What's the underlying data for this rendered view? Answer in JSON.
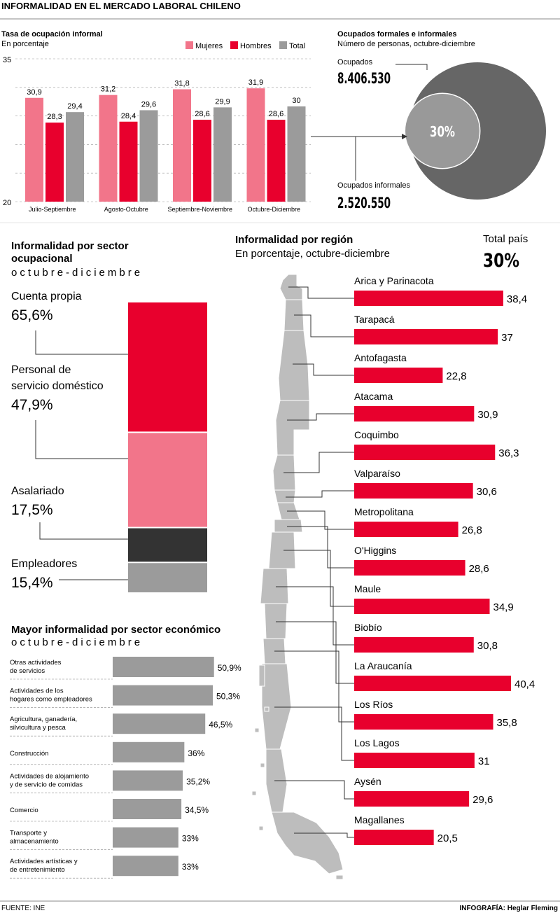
{
  "header": {
    "title": "INFORMALIDAD EN EL MERCADO LABORAL CHILENO"
  },
  "footer": {
    "source": "FUENTE: INE",
    "credit": "INFOGRAFÍA: Heglar Fleming"
  },
  "colors": {
    "mujeres": "#f2758a",
    "hombres": "#e8002d",
    "total": "#9b9b9b",
    "dark": "#333333",
    "region_bar": "#e8002d",
    "map": "#bdbdbd"
  },
  "chart_data": [
    {
      "type": "bar",
      "title": "Tasa de ocupación informal",
      "subtitle": "En porcentaje",
      "categories": [
        "Julio-Septiembre",
        "Agosto-Octubre",
        "Septiembre-Noviembre",
        "Octubre-Diciembre"
      ],
      "series": [
        {
          "name": "Mujeres",
          "values": [
            30.9,
            31.2,
            31.8,
            31.9
          ],
          "labels": [
            "30,9",
            "31,2",
            "31,8",
            "31,9"
          ]
        },
        {
          "name": "Hombres",
          "values": [
            28.3,
            28.4,
            28.6,
            28.6
          ],
          "labels": [
            "28,3",
            "28,4",
            "28,6",
            "28,6"
          ]
        },
        {
          "name": "Total",
          "values": [
            29.4,
            29.6,
            29.9,
            30
          ],
          "labels": [
            "29,4",
            "29,6",
            "29,9",
            "30"
          ]
        }
      ],
      "ylim": [
        20,
        35
      ],
      "yticks": [
        "35",
        "20"
      ],
      "legend": "top-right"
    },
    {
      "type": "pie",
      "title": "Ocupados formales e informales",
      "subtitle": "Número de personas, octubre-diciembre",
      "total_label": "Ocupados",
      "total_value": "8.406.530",
      "informal_label": "Ocupados informales",
      "informal_value": "2.520.550",
      "inner_label": "30%",
      "inner_share": 0.3
    },
    {
      "type": "bar",
      "orientation": "stacked-vertical",
      "title": "Informalidad por sector ocupacional",
      "subtitle": "octubre-diciembre",
      "categories": [
        "Cuenta propia",
        "Personal de servicio doméstico",
        "Asalariado",
        "Empleadores"
      ],
      "values": [
        65.6,
        47.9,
        17.5,
        15.4
      ],
      "labels": [
        "65,6%",
        "47,9%",
        "17,5%",
        "15,4%"
      ]
    },
    {
      "type": "bar",
      "orientation": "horizontal",
      "title": "Mayor informalidad por sector económico",
      "subtitle": "octubre-diciembre",
      "categories": [
        "Otras actividades de servicios",
        "Actividades de los hogares como empleadores",
        "Agricultura, ganadería, silvicultura y pesca",
        "Construcción",
        "Actividades de alojamiento y de servicio de comidas",
        "Comercio",
        "Transporte y almacenamiento",
        "Actividades artísticas y de entretenimiento"
      ],
      "category_lines": [
        [
          "Otras actividades",
          "de servicios"
        ],
        [
          "Actividades de los",
          "hogares como empleadores"
        ],
        [
          "Agricultura, ganadería,",
          "silvicultura y pesca"
        ],
        [
          "Construcción"
        ],
        [
          "Actividades de alojamiento",
          "y de servicio de comidas"
        ],
        [
          "Comercio"
        ],
        [
          "Transporte y",
          "almacenamiento"
        ],
        [
          "Actividades artísticas y",
          "de entretenimiento"
        ]
      ],
      "values": [
        50.9,
        50.3,
        46.5,
        36,
        35.2,
        34.5,
        33,
        33
      ],
      "labels": [
        "50,9%",
        "50,3%",
        "46,5%",
        "36%",
        "35,2%",
        "34,5%",
        "33%",
        "33%"
      ]
    },
    {
      "type": "bar",
      "orientation": "horizontal",
      "title": "Informalidad por región",
      "subtitle": "En porcentaje, octubre-diciembre",
      "total_label": "Total país",
      "total_value": "30%",
      "categories": [
        "Arica y Parinacota",
        "Tarapacá",
        "Antofagasta",
        "Atacama",
        "Coquimbo",
        "Valparaíso",
        "Metropolitana",
        "O'Higgins",
        "Maule",
        "Biobío",
        "La Araucanía",
        "Los Ríos",
        "Los Lagos",
        "Aysén",
        "Magallanes"
      ],
      "values": [
        38.4,
        37,
        22.8,
        30.9,
        36.3,
        30.6,
        26.8,
        28.6,
        34.9,
        30.8,
        40.4,
        35.8,
        31,
        29.6,
        20.5
      ],
      "labels": [
        "38,4",
        "37",
        "22,8",
        "30,9",
        "36,3",
        "30,6",
        "26,8",
        "28,6",
        "34,9",
        "30,8",
        "40,4",
        "35,8",
        "31",
        "29,6",
        "20,5"
      ]
    }
  ]
}
